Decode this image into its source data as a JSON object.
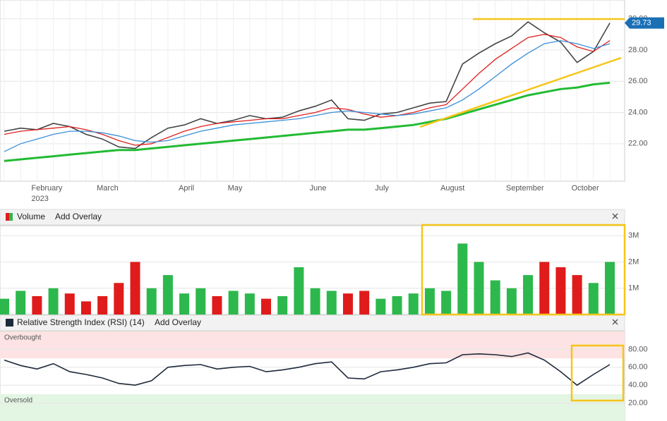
{
  "chart_data": [
    {
      "type": "line",
      "categories": [
        null,
        null,
        "February",
        null,
        null,
        null,
        "March",
        null,
        null,
        null,
        null,
        "April",
        null,
        null,
        "May",
        null,
        null,
        null,
        null,
        "June",
        null,
        null,
        null,
        "July",
        null,
        null,
        null,
        "August",
        null,
        null,
        null,
        "September",
        null,
        null,
        null,
        "October",
        null,
        null
      ],
      "year_label": "2023",
      "series": [
        {
          "color": "#444444",
          "values": [
            22.8,
            23.0,
            22.9,
            23.3,
            23.1,
            22.6,
            22.3,
            21.8,
            21.7,
            22.4,
            23.0,
            23.2,
            23.6,
            23.3,
            23.5,
            23.8,
            23.6,
            23.7,
            24.1,
            24.4,
            24.8,
            23.6,
            23.5,
            23.9,
            24.0,
            24.3,
            24.6,
            24.7,
            27.1,
            27.8,
            28.4,
            28.9,
            29.8,
            29.1,
            28.5,
            27.2,
            27.9,
            29.73
          ]
        },
        {
          "color": "#e02020",
          "values": [
            22.6,
            22.8,
            22.9,
            23.0,
            23.1,
            22.9,
            22.6,
            22.2,
            21.9,
            22.0,
            22.4,
            22.8,
            23.1,
            23.3,
            23.4,
            23.5,
            23.6,
            23.6,
            23.8,
            24.0,
            24.3,
            24.2,
            23.9,
            23.7,
            23.8,
            24.0,
            24.3,
            24.5,
            25.5,
            26.5,
            27.4,
            28.1,
            28.8,
            29.0,
            28.8,
            28.2,
            27.9,
            28.6
          ]
        },
        {
          "color": "#3a8fd8",
          "values": [
            21.5,
            22.0,
            22.3,
            22.6,
            22.8,
            22.8,
            22.7,
            22.5,
            22.2,
            22.1,
            22.2,
            22.5,
            22.8,
            23.0,
            23.2,
            23.3,
            23.4,
            23.5,
            23.6,
            23.8,
            24.0,
            24.1,
            24.0,
            23.9,
            23.8,
            23.9,
            24.1,
            24.3,
            24.8,
            25.5,
            26.3,
            27.1,
            27.8,
            28.4,
            28.6,
            28.4,
            28.1,
            28.4
          ]
        },
        {
          "color": "#22bb33",
          "values": [
            20.9,
            21.0,
            21.1,
            21.2,
            21.3,
            21.4,
            21.5,
            21.6,
            21.6,
            21.7,
            21.8,
            21.9,
            22.0,
            22.1,
            22.2,
            22.3,
            22.4,
            22.5,
            22.6,
            22.7,
            22.8,
            22.9,
            22.9,
            23.0,
            23.1,
            23.2,
            23.4,
            23.6,
            23.9,
            24.2,
            24.5,
            24.8,
            25.1,
            25.3,
            25.5,
            25.6,
            25.8,
            25.9
          ]
        }
      ],
      "ylim": [
        19.6,
        31.2
      ],
      "yticks": [
        {
          "value": 22,
          "label": "22.00"
        },
        {
          "value": 24,
          "label": "24.00"
        },
        {
          "value": 26,
          "label": "26.00"
        },
        {
          "value": 28,
          "label": "28.00"
        },
        {
          "value": 30,
          "label": "30.00"
        }
      ],
      "grid": true
    },
    {
      "type": "bar",
      "title": "Volume",
      "overlay_label": "Add Overlay",
      "up_color": "#2db84d",
      "down_color": "#e01b1b",
      "values": [
        0.6,
        0.9,
        0.7,
        1.0,
        0.8,
        0.5,
        0.7,
        1.2,
        2.0,
        1.0,
        1.5,
        0.8,
        1.0,
        0.7,
        0.9,
        0.8,
        0.6,
        0.7,
        1.8,
        1.0,
        0.9,
        0.8,
        0.9,
        0.6,
        0.7,
        0.8,
        1.0,
        0.9,
        2.7,
        2.0,
        1.3,
        1.0,
        1.5,
        2.0,
        1.8,
        1.5,
        1.2,
        2.0
      ],
      "ylim": [
        0,
        3.38
      ],
      "yticks": [
        {
          "value": 1,
          "label": "1M"
        },
        {
          "value": 2,
          "label": "2M"
        },
        {
          "value": 3,
          "label": "3M"
        }
      ],
      "grid": true
    },
    {
      "type": "line",
      "title": "Relative Strength Index (RSI) (14)",
      "overlay_label": "Add Overlay",
      "series": [
        {
          "color": "#1e2a3a",
          "values": [
            68,
            62,
            58,
            64,
            55,
            52,
            48,
            42,
            40,
            45,
            60,
            62,
            63,
            58,
            60,
            61,
            55,
            57,
            60,
            64,
            66,
            48,
            47,
            55,
            57,
            60,
            64,
            65,
            74,
            75,
            74,
            72,
            76,
            68,
            55,
            40,
            52,
            63
          ]
        }
      ],
      "zones": [
        {
          "label": "Overbought",
          "range": [
            70,
            100
          ],
          "color": "#fde3e3"
        },
        {
          "label": "Oversold",
          "range": [
            0,
            30
          ],
          "color": "#e3f5e3"
        }
      ],
      "ylim": [
        0,
        100
      ],
      "yticks": [
        {
          "value": 20,
          "label": "20.00"
        },
        {
          "value": 40,
          "label": "40.00"
        },
        {
          "value": 60,
          "label": "60.00"
        },
        {
          "value": 80,
          "label": "80.00"
        }
      ],
      "grid": true
    }
  ]
}
